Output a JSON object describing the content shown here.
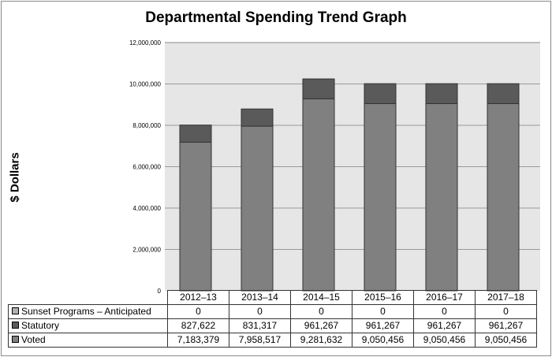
{
  "title": "Departmental Spending Trend Graph",
  "ylabel": "$ Dollars",
  "colors": {
    "plot_background": "#e6e6e6",
    "voted": "#808080",
    "statutory": "#5a5a5a",
    "sunset": "#b0b0b0"
  },
  "chart_data": {
    "type": "bar",
    "stacked": true,
    "title": "Departmental Spending Trend Graph",
    "xlabel": "",
    "ylabel": "$ Dollars",
    "categories": [
      "2012–13",
      "2013–14",
      "2014–15",
      "2015–16",
      "2016–17",
      "2017–18"
    ],
    "ylim": [
      0,
      12000000
    ],
    "yticks": [
      "0",
      "2,000,000",
      "4,000,000",
      "6,000,000",
      "8,000,000",
      "10,000,000",
      "12,000,000"
    ],
    "ytick_values": [
      0,
      2000000,
      4000000,
      6000000,
      8000000,
      10000000,
      12000000
    ],
    "grid": true,
    "legend": "data table below chart",
    "series": [
      {
        "name": "Sunset Programs – Anticipated",
        "values": [
          0,
          0,
          0,
          0,
          0,
          0
        ],
        "value_labels": [
          "0",
          "0",
          "0",
          "0",
          "0",
          "0"
        ]
      },
      {
        "name": "Statutory",
        "values": [
          827622,
          831317,
          961267,
          961267,
          961267,
          961267
        ],
        "value_labels": [
          "827,622",
          "831,317",
          "961,267",
          "961,267",
          "961,267",
          "961,267"
        ]
      },
      {
        "name": "Voted",
        "values": [
          7183379,
          7958517,
          9281632,
          9050456,
          9050456,
          9050456
        ],
        "value_labels": [
          "7,183,379",
          "7,958,517",
          "9,281,632",
          "9,050,456",
          "9,050,456",
          "9,050,456"
        ]
      }
    ]
  }
}
